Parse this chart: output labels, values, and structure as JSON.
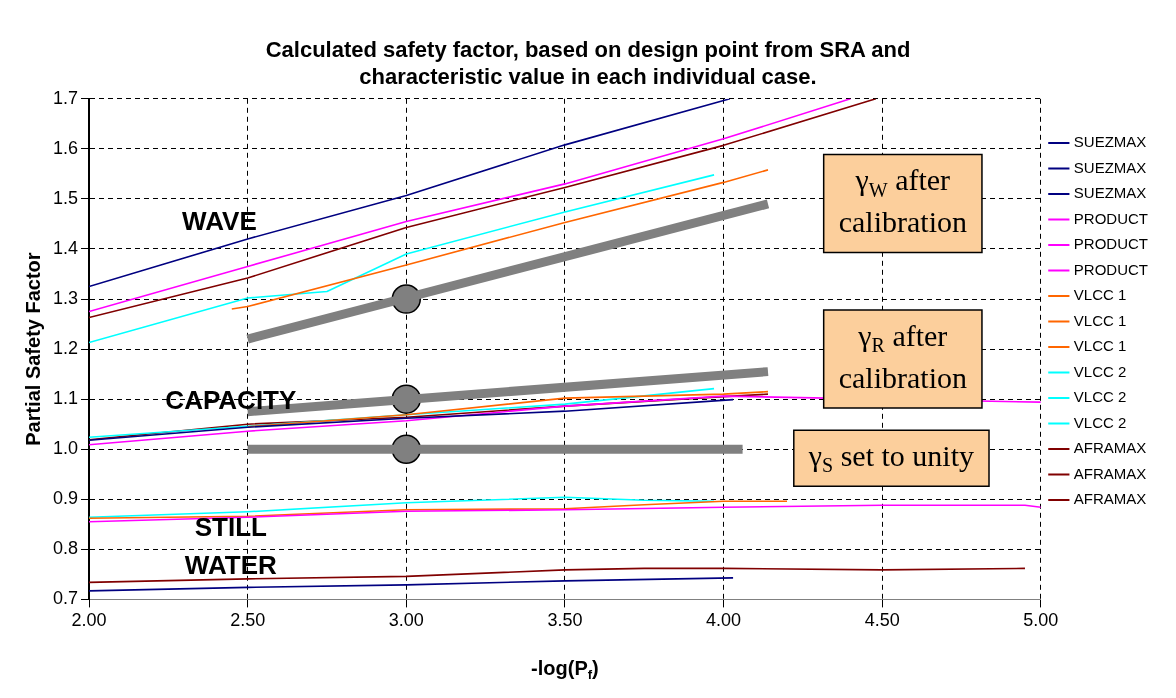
{
  "chart_data": {
    "type": "line",
    "title": "Calculated safety factor, based on design point from SRA and characteristic value in each individual case.",
    "xlabel": "-log(P$_{f}$)",
    "ylabel": "Partial Safety Factor",
    "xlim": [
      2,
      5
    ],
    "xticks": [
      {
        "value": 2,
        "label": "2.00"
      },
      {
        "value": 2.5,
        "label": "2.50"
      },
      {
        "value": 3,
        "label": "3.00"
      },
      {
        "value": 3.5,
        "label": "3.50"
      },
      {
        "value": 4,
        "label": "4.00"
      },
      {
        "value": 4.5,
        "label": "4.50"
      },
      {
        "value": 5,
        "label": "5.00"
      }
    ],
    "ylim": [
      0.7,
      1.7
    ],
    "yticks": [
      0.7,
      0.8,
      0.9,
      {
        "value": 1,
        "label": "1.0"
      },
      1.1,
      1.2,
      1.3,
      1.4,
      1.5,
      1.6,
      1.7
    ],
    "grid": true,
    "legend": "right",
    "line_style": "solid",
    "series": [
      {
        "name": "SUEZMAX",
        "color": "#000080",
        "x": [
          2,
          2.5,
          3,
          3.5,
          4.02
        ],
        "values": [
          1.325,
          1.42,
          1.507,
          1.608,
          1.7
        ]
      },
      {
        "name": "SUEZMAX",
        "color": "#000080",
        "x": [
          2,
          2.5,
          3,
          3.5,
          4.03
        ],
        "values": [
          1.018,
          1.044,
          1.062,
          1.076,
          1.099
        ]
      },
      {
        "name": "SUEZMAX",
        "color": "#000080",
        "x": [
          2,
          2.5,
          3,
          3.5,
          4.03
        ],
        "values": [
          0.717,
          0.724,
          0.729,
          0.737,
          0.743
        ]
      },
      {
        "name": "PRODUCT",
        "color": "#ff00ff",
        "x": [
          2,
          2.5,
          3,
          3.5,
          4,
          4.4
        ],
        "values": [
          1.275,
          1.365,
          1.455,
          1.53,
          1.62,
          1.7
        ]
      },
      {
        "name": "PRODUCT",
        "color": "#ff00ff",
        "x": [
          2,
          2.5,
          3,
          3.5,
          4,
          5
        ],
        "values": [
          1.009,
          1.036,
          1.057,
          1.086,
          1.106,
          1.094
        ]
      },
      {
        "name": "PRODUCT",
        "color": "#ff00ff",
        "x": [
          2,
          2.5,
          3,
          3.5,
          4,
          4.5,
          4.95,
          5
        ],
        "values": [
          0.855,
          0.864,
          0.876,
          0.879,
          0.884,
          0.888,
          0.888,
          0.884
        ]
      },
      {
        "name": "VLCC 1",
        "color": "#ff6600",
        "x": [
          2.45,
          2.5,
          3,
          3.5,
          4,
          4.14
        ],
        "values": [
          1.28,
          1.285,
          1.368,
          1.453,
          1.533,
          1.558
        ]
      },
      {
        "name": "VLCC 1",
        "color": "#ff6600",
        "x": [
          2.5,
          3,
          3.5,
          4,
          4.14
        ],
        "values": [
          1.045,
          1.069,
          1.102,
          1.11,
          1.115
        ]
      },
      {
        "name": "VLCC 1",
        "color": "#ff6600",
        "x": [
          2,
          2.5,
          3,
          3.5,
          3.75,
          4,
          4.2
        ],
        "values": [
          0.862,
          0.866,
          0.879,
          0.881,
          0.889,
          0.896,
          0.896
        ]
      },
      {
        "name": "VLCC 2",
        "color": "#00ffff",
        "x": [
          2,
          2.5,
          2.75,
          3,
          3.5,
          3.97
        ],
        "values": [
          1.213,
          1.302,
          1.315,
          1.39,
          1.474,
          1.548
        ]
      },
      {
        "name": "VLCC 2",
        "color": "#00ffff",
        "x": [
          2,
          2.5,
          3,
          3.5,
          3.97
        ],
        "values": [
          1.024,
          1.046,
          1.069,
          1.09,
          1.121
        ]
      },
      {
        "name": "VLCC 2",
        "color": "#00ffff",
        "x": [
          2,
          2.5,
          3,
          3.5,
          3.75,
          3.97
        ],
        "values": [
          0.864,
          0.875,
          0.893,
          0.904,
          0.898,
          0.896
        ]
      },
      {
        "name": "AFRAMAX",
        "color": "#800000",
        "x": [
          2,
          2.5,
          3,
          3.5,
          4,
          4.48
        ],
        "values": [
          1.263,
          1.342,
          1.443,
          1.523,
          1.607,
          1.7
        ]
      },
      {
        "name": "AFRAMAX",
        "color": "#800000",
        "x": [
          2,
          2.5,
          3,
          3.5,
          4,
          4.14
        ],
        "values": [
          1.019,
          1.05,
          1.064,
          1.086,
          1.105,
          1.11
        ]
      },
      {
        "name": "AFRAMAX",
        "color": "#800000",
        "x": [
          2,
          2.5,
          3,
          3.5,
          3.75,
          4,
          4.5,
          4.95
        ],
        "values": [
          0.734,
          0.741,
          0.746,
          0.759,
          0.762,
          0.762,
          0.759,
          0.762
        ]
      },
      {
        "color": "#808080",
        "x": [
          2.5,
          4.14
        ],
        "values": [
          1.22,
          1.49
        ]
      },
      {
        "color": "#808080",
        "x": [
          2.5,
          4.14
        ],
        "values": [
          1.075,
          1.155
        ]
      },
      {
        "color": "#808080",
        "x": [
          2.5,
          4.06
        ],
        "values": [
          1.0,
          1.0
        ]
      },
      {
        "type": "scatter",
        "color": "#808080",
        "x": [
          3,
          3,
          3
        ],
        "values": [
          1.3,
          1.1,
          1.0
        ]
      }
    ],
    "annotations": [
      "WAVE",
      "CAPACITY",
      "STILL WATER",
      "γ$_{W}$ after calibration",
      "γ$_{R}$ after calibration",
      "γ$_{S}$ set to unity"
    ]
  }
}
